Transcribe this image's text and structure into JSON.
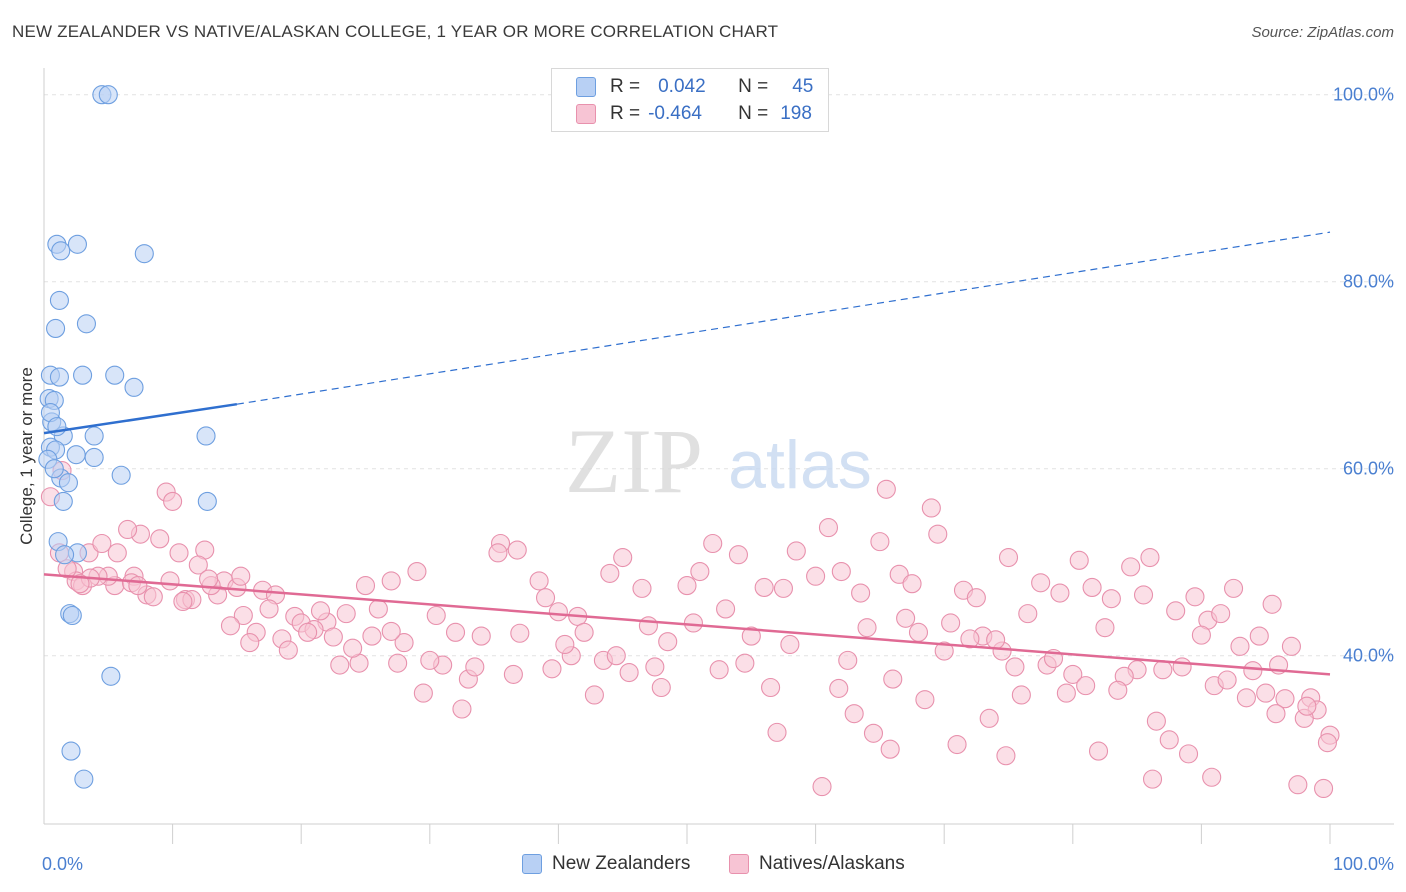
{
  "title": "NEW ZEALANDER VS NATIVE/ALASKAN COLLEGE, 1 YEAR OR MORE CORRELATION CHART",
  "source": "Source: ZipAtlas.com",
  "watermark": {
    "zip": "ZIP",
    "atlas": "atlas"
  },
  "colors": {
    "blue_fill": "#b8d0f4",
    "blue_stroke": "#6e9fe0",
    "blue_line": "#2f6fcf",
    "pink_fill": "#f7c4d4",
    "pink_stroke": "#e891ad",
    "pink_line": "#e06a94",
    "axis_text": "#4a7fd0",
    "grid": "#e2e2e2"
  },
  "legend": {
    "rows": [
      {
        "r_label": "R =",
        "r_value": "0.042",
        "n_label": "N =",
        "n_value": "45"
      },
      {
        "r_label": "R =",
        "r_value": "-0.464",
        "n_label": "N =",
        "n_value": "198"
      }
    ]
  },
  "bottom_legend": [
    "New Zealanders",
    "Natives/Alaskans"
  ],
  "chart_data": {
    "type": "scatter",
    "title": "NEW ZEALANDER VS NATIVE/ALASKAN COLLEGE, 1 YEAR OR MORE CORRELATION CHART",
    "xlabel": "",
    "ylabel": "College, 1 year or more",
    "xlim": [
      0,
      100
    ],
    "ylim": [
      22,
      102
    ],
    "x_tick_labels": [
      "0.0%",
      "100.0%"
    ],
    "y_ticks": [
      40,
      60,
      80,
      100
    ],
    "y_tick_labels": [
      "40.0%",
      "60.0%",
      "80.0%",
      "100.0%"
    ],
    "grid": true,
    "legend_position": "top-center",
    "series": [
      {
        "name": "New Zealanders",
        "r": 0.042,
        "n": 45,
        "trend": {
          "x0": 0,
          "y0": 63.8,
          "x1": 15,
          "y1": 66.9,
          "dashed_to_x": 100,
          "dashed_to_y": 85.3
        },
        "points": [
          [
            4.5,
            100
          ],
          [
            5.0,
            100
          ],
          [
            1.0,
            84
          ],
          [
            2.6,
            84
          ],
          [
            1.3,
            83.3
          ],
          [
            7.8,
            83
          ],
          [
            1.2,
            78
          ],
          [
            0.9,
            75
          ],
          [
            3.3,
            75.5
          ],
          [
            0.5,
            70
          ],
          [
            1.2,
            69.8
          ],
          [
            3.0,
            70
          ],
          [
            5.5,
            70
          ],
          [
            7.0,
            68.7
          ],
          [
            0.4,
            67.5
          ],
          [
            0.8,
            67.3
          ],
          [
            0.6,
            65
          ],
          [
            1.5,
            63.5
          ],
          [
            3.9,
            63.5
          ],
          [
            12.6,
            63.5
          ],
          [
            0.5,
            62.3
          ],
          [
            0.9,
            62
          ],
          [
            2.5,
            61.5
          ],
          [
            3.9,
            61.2
          ],
          [
            0.3,
            61
          ],
          [
            1.3,
            59
          ],
          [
            1.9,
            58.5
          ],
          [
            6.0,
            59.3
          ],
          [
            0.8,
            60
          ],
          [
            1.5,
            56.5
          ],
          [
            12.7,
            56.5
          ],
          [
            1.1,
            52.2
          ],
          [
            2.6,
            51
          ],
          [
            1.6,
            50.8
          ],
          [
            2.0,
            44.5
          ],
          [
            2.2,
            44.3
          ],
          [
            5.2,
            37.8
          ],
          [
            2.1,
            29.8
          ],
          [
            3.1,
            26.8
          ],
          [
            0.5,
            66
          ],
          [
            1.0,
            64.5
          ]
        ]
      },
      {
        "name": "Natives/Alaskans",
        "r": -0.464,
        "n": 198,
        "trend": {
          "x0": 0,
          "y0": 48.7,
          "x1": 100,
          "y1": 38.0
        },
        "points": [
          [
            0.5,
            57
          ],
          [
            1.4,
            59.8
          ],
          [
            1.2,
            51
          ],
          [
            2.3,
            49
          ],
          [
            2.5,
            48
          ],
          [
            3.5,
            51
          ],
          [
            4.5,
            52
          ],
          [
            5.5,
            47.5
          ],
          [
            3.0,
            47.5
          ],
          [
            5.0,
            48.5
          ],
          [
            7.0,
            48.5
          ],
          [
            8.0,
            46.5
          ],
          [
            9.0,
            52.5
          ],
          [
            10.5,
            51
          ],
          [
            12.5,
            51.3
          ],
          [
            9.5,
            57.5
          ],
          [
            10.0,
            56.5
          ],
          [
            7.5,
            53
          ],
          [
            5.7,
            51
          ],
          [
            6.5,
            53.5
          ],
          [
            11.0,
            46
          ],
          [
            12.0,
            49.7
          ],
          [
            14.0,
            48
          ],
          [
            15.0,
            47.3
          ],
          [
            13.5,
            46.5
          ],
          [
            15.5,
            44.3
          ],
          [
            17.0,
            47
          ],
          [
            18.0,
            46.5
          ],
          [
            17.5,
            45
          ],
          [
            19.5,
            44.2
          ],
          [
            20.0,
            43.5
          ],
          [
            22.0,
            43.6
          ],
          [
            21.0,
            42.8
          ],
          [
            23.5,
            44.5
          ],
          [
            22.5,
            42
          ],
          [
            24.5,
            39.2
          ],
          [
            25.0,
            47.5
          ],
          [
            27.0,
            48
          ],
          [
            26.0,
            45
          ],
          [
            29.0,
            49
          ],
          [
            28.0,
            41.4
          ],
          [
            30.5,
            44.3
          ],
          [
            32.0,
            42.5
          ],
          [
            31.0,
            39
          ],
          [
            33.0,
            37.5
          ],
          [
            29.5,
            36
          ],
          [
            32.5,
            34.3
          ],
          [
            35.5,
            52
          ],
          [
            35.3,
            51
          ],
          [
            36.8,
            51.3
          ],
          [
            38.5,
            48
          ],
          [
            39.0,
            46.2
          ],
          [
            40.0,
            44.7
          ],
          [
            41.5,
            44.2
          ],
          [
            42.0,
            42.5
          ],
          [
            43.5,
            39.5
          ],
          [
            41.0,
            40
          ],
          [
            44.0,
            48.8
          ],
          [
            45.0,
            50.5
          ],
          [
            46.5,
            47.2
          ],
          [
            47.0,
            43.2
          ],
          [
            48.5,
            41.5
          ],
          [
            50.0,
            47.5
          ],
          [
            51.0,
            49
          ],
          [
            52.0,
            52
          ],
          [
            53.0,
            45
          ],
          [
            54.0,
            50.8
          ],
          [
            55.0,
            42.1
          ],
          [
            56.0,
            47.3
          ],
          [
            57.5,
            47.2
          ],
          [
            58.5,
            51.2
          ],
          [
            60.0,
            48.5
          ],
          [
            61.0,
            53.7
          ],
          [
            62.0,
            49
          ],
          [
            63.5,
            46.7
          ],
          [
            64.0,
            43
          ],
          [
            65.0,
            52.2
          ],
          [
            66.5,
            48.7
          ],
          [
            67.5,
            47.7
          ],
          [
            68.0,
            42.5
          ],
          [
            69.5,
            53
          ],
          [
            70.5,
            43.5
          ],
          [
            71.5,
            47
          ],
          [
            72.5,
            46.2
          ],
          [
            73.0,
            42.1
          ],
          [
            74.5,
            40.5
          ],
          [
            75.0,
            50.5
          ],
          [
            76.5,
            44.5
          ],
          [
            77.5,
            47.8
          ],
          [
            78.0,
            39
          ],
          [
            79.0,
            46.7
          ],
          [
            80.5,
            50.2
          ],
          [
            81.5,
            47.3
          ],
          [
            82.5,
            43
          ],
          [
            83.0,
            46.1
          ],
          [
            84.5,
            49.5
          ],
          [
            85.5,
            46.5
          ],
          [
            86.0,
            50.5
          ],
          [
            87.0,
            38.5
          ],
          [
            88.5,
            38.8
          ],
          [
            89.5,
            46.3
          ],
          [
            90.5,
            43.8
          ],
          [
            91.5,
            44.5
          ],
          [
            92.5,
            47.2
          ],
          [
            93.0,
            41
          ],
          [
            94.0,
            38.4
          ],
          [
            95.5,
            45.5
          ],
          [
            96.0,
            39
          ],
          [
            97.0,
            41
          ],
          [
            98.5,
            35.5
          ],
          [
            99.0,
            34.2
          ],
          [
            100.0,
            31.5
          ],
          [
            98.0,
            33.3
          ],
          [
            97.5,
            26.2
          ],
          [
            99.5,
            25.8
          ],
          [
            99.8,
            30.7
          ],
          [
            94.5,
            42.1
          ],
          [
            90.0,
            42.2
          ],
          [
            85.0,
            38.5
          ],
          [
            80.0,
            38
          ],
          [
            75.5,
            38.8
          ],
          [
            70.0,
            40.5
          ],
          [
            66.0,
            37.5
          ],
          [
            62.5,
            39.5
          ],
          [
            58.0,
            41.2
          ],
          [
            54.5,
            39.2
          ],
          [
            50.5,
            43.5
          ],
          [
            47.5,
            38.8
          ],
          [
            44.5,
            40
          ],
          [
            40.5,
            41.2
          ],
          [
            37.0,
            42.4
          ],
          [
            34.0,
            42.1
          ],
          [
            30.0,
            39.5
          ],
          [
            27.5,
            39.2
          ],
          [
            25.5,
            42.1
          ],
          [
            23.0,
            39
          ],
          [
            20.5,
            42.5
          ],
          [
            18.5,
            41.8
          ],
          [
            16.5,
            42.5
          ],
          [
            14.5,
            43.2
          ],
          [
            13.0,
            47.5
          ],
          [
            11.5,
            46
          ],
          [
            9.8,
            48
          ],
          [
            8.5,
            46.3
          ],
          [
            6.8,
            47.8
          ],
          [
            4.2,
            48.5
          ],
          [
            3.6,
            48.3
          ],
          [
            2.8,
            47.7
          ],
          [
            1.8,
            49.3
          ],
          [
            57.0,
            31.8
          ],
          [
            63.0,
            33.8
          ],
          [
            64.5,
            31.7
          ],
          [
            68.5,
            35.3
          ],
          [
            71.0,
            30.5
          ],
          [
            73.5,
            33.3
          ],
          [
            76.0,
            35.8
          ],
          [
            79.5,
            36
          ],
          [
            81.0,
            36.8
          ],
          [
            84.0,
            37.8
          ],
          [
            86.5,
            33
          ],
          [
            87.5,
            31
          ],
          [
            89.0,
            29.5
          ],
          [
            91.0,
            36.8
          ],
          [
            93.5,
            35.5
          ],
          [
            95.0,
            36
          ],
          [
            96.5,
            35.4
          ],
          [
            98.2,
            34.6
          ],
          [
            60.5,
            26
          ],
          [
            67.0,
            44
          ],
          [
            69.0,
            55.8
          ],
          [
            65.5,
            57.8
          ],
          [
            72.0,
            41.8
          ],
          [
            74.0,
            41.7
          ],
          [
            78.5,
            39.7
          ],
          [
            83.5,
            36.3
          ],
          [
            88.0,
            44.8
          ],
          [
            92.0,
            37.4
          ],
          [
            95.8,
            33.8
          ],
          [
            82.0,
            29.8
          ],
          [
            74.8,
            29.3
          ],
          [
            65.8,
            30
          ],
          [
            61.8,
            36.5
          ],
          [
            56.5,
            36.6
          ],
          [
            52.5,
            38.5
          ],
          [
            48.0,
            36.6
          ],
          [
            45.5,
            38.2
          ],
          [
            42.8,
            35.8
          ],
          [
            39.5,
            38.6
          ],
          [
            36.5,
            38
          ],
          [
            33.5,
            38.8
          ],
          [
            27.0,
            42.6
          ],
          [
            24.0,
            40.8
          ],
          [
            21.5,
            44.8
          ],
          [
            19.0,
            40.6
          ],
          [
            16.0,
            41.4
          ],
          [
            15.3,
            48.5
          ],
          [
            12.8,
            48.2
          ],
          [
            10.8,
            45.8
          ],
          [
            7.3,
            47.5
          ],
          [
            90.8,
            27
          ],
          [
            86.2,
            26.8
          ]
        ]
      }
    ]
  }
}
